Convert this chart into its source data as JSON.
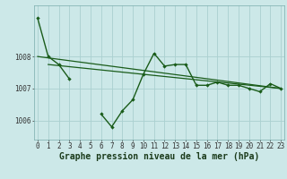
{
  "title": "Graphe pression niveau de la mer (hPa)",
  "bg_color": "#cce8e8",
  "grid_color": "#aad0d0",
  "line_color": "#1a5c1a",
  "x_labels": [
    "0",
    "1",
    "2",
    "3",
    "4",
    "5",
    "6",
    "7",
    "8",
    "9",
    "10",
    "11",
    "12",
    "13",
    "14",
    "15",
    "16",
    "17",
    "18",
    "19",
    "20",
    "21",
    "22",
    "23"
  ],
  "hours": [
    0,
    1,
    2,
    3,
    4,
    5,
    6,
    7,
    8,
    9,
    10,
    11,
    12,
    13,
    14,
    15,
    16,
    17,
    18,
    19,
    20,
    21,
    22,
    23
  ],
  "pressure_main": [
    1009.2,
    1008.0,
    1007.75,
    1007.3,
    null,
    null,
    1006.2,
    1005.8,
    1006.3,
    1006.65,
    1007.45,
    1008.1,
    1007.7,
    1007.75,
    1007.75,
    1007.1,
    1007.1,
    1007.2,
    1007.1,
    1007.1,
    1007.0,
    1006.9,
    1007.15,
    1007.0
  ],
  "trend1_x": [
    0,
    23
  ],
  "trend1_y": [
    1008.0,
    1007.0
  ],
  "trend2_x": [
    1,
    23
  ],
  "trend2_y": [
    1007.75,
    1007.0
  ],
  "ylim_min": 1005.4,
  "ylim_max": 1009.6,
  "xlim_min": -0.3,
  "xlim_max": 23.3,
  "yticks": [
    1006,
    1007,
    1008
  ],
  "font_size_label": 7.0,
  "font_size_tick": 5.5
}
